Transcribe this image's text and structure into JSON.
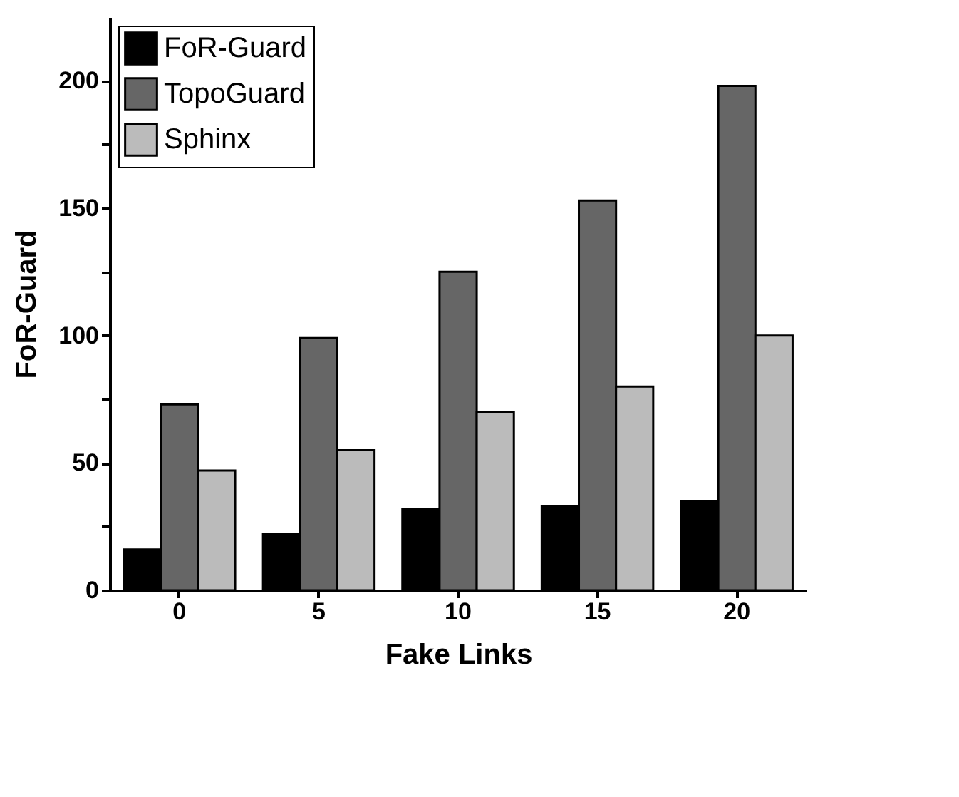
{
  "chart_data": {
    "type": "bar",
    "xlabel": "Fake Links",
    "ylabel": "FoR-Guard",
    "categories": [
      "0",
      "5",
      "10",
      "15",
      "20"
    ],
    "series": [
      {
        "name": "FoR-Guard",
        "color": "#000000",
        "values": [
          16,
          22,
          32,
          33,
          35
        ]
      },
      {
        "name": "TopoGuard",
        "color": "#666666",
        "values": [
          73,
          99,
          125,
          153,
          198
        ]
      },
      {
        "name": "Sphinx",
        "color": "#bbbbbb",
        "values": [
          47,
          55,
          70,
          80,
          100
        ]
      }
    ],
    "ylim": [
      0,
      225
    ],
    "yticks": [
      0,
      {
        "value": 25,
        "label": null
      },
      50,
      {
        "value": 75,
        "label": null
      },
      100,
      {
        "value": 125,
        "label": null
      },
      150,
      {
        "value": 175,
        "label": null
      },
      200
    ],
    "grid": false,
    "legend": "top left"
  }
}
